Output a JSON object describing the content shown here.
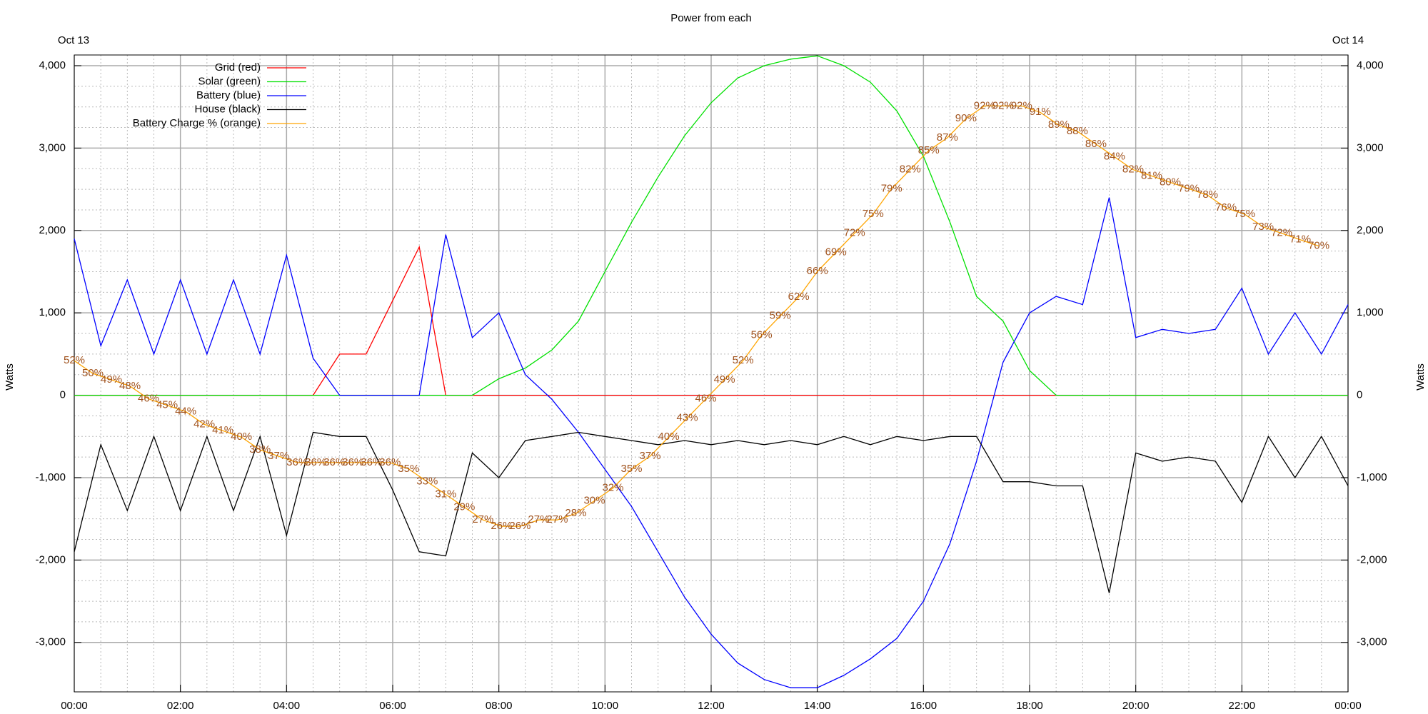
{
  "chart_data": {
    "type": "line",
    "title": "Power from each",
    "ylabel": "Watts",
    "annotations": [
      "Oct 13",
      "Oct 14"
    ],
    "grid": true,
    "legend": "top-left",
    "x": [
      0,
      0.5,
      1,
      1.5,
      2,
      2.5,
      3,
      3.5,
      4,
      4.5,
      5,
      5.5,
      6,
      6.5,
      7,
      7.5,
      8,
      8.5,
      9,
      9.5,
      10,
      10.5,
      11,
      11.5,
      12,
      12.5,
      13,
      13.5,
      14,
      14.5,
      15,
      15.5,
      16,
      16.5,
      17,
      17.5,
      18,
      18.5,
      19,
      19.5,
      20,
      20.5,
      21,
      21.5,
      22,
      22.5,
      23,
      23.5,
      24
    ],
    "xlim": [
      0,
      24
    ],
    "xticks": [
      {
        "value": 0,
        "label": "00:00"
      },
      {
        "value": 2,
        "label": "02:00"
      },
      {
        "value": 4,
        "label": "04:00"
      },
      {
        "value": 6,
        "label": "06:00"
      },
      {
        "value": 8,
        "label": "08:00"
      },
      {
        "value": 10,
        "label": "10:00"
      },
      {
        "value": 12,
        "label": "12:00"
      },
      {
        "value": 14,
        "label": "14:00"
      },
      {
        "value": 16,
        "label": "16:00"
      },
      {
        "value": 18,
        "label": "18:00"
      },
      {
        "value": 20,
        "label": "20:00"
      },
      {
        "value": 22,
        "label": "22:00"
      },
      {
        "value": 24,
        "label": "00:00"
      }
    ],
    "ylim": [
      -3600,
      4130
    ],
    "yticks": [
      {
        "value": -3000,
        "label": "-3,000"
      },
      {
        "value": -2000,
        "label": "-2,000"
      },
      {
        "value": -1000,
        "label": "-1,000"
      },
      0,
      {
        "value": 1000,
        "label": "1,000"
      },
      {
        "value": 2000,
        "label": "2,000"
      },
      {
        "value": 3000,
        "label": "3,000"
      },
      {
        "value": 4000,
        "label": "4,000"
      }
    ],
    "y2lim": [
      0,
      100
    ],
    "series": [
      {
        "name": "Grid (red)",
        "color": "#ff0000",
        "values": [
          0,
          0,
          0,
          0,
          0,
          0,
          0,
          0,
          0,
          0,
          500,
          500,
          1150,
          1800,
          0,
          0,
          0,
          0,
          0,
          0,
          0,
          0,
          0,
          0,
          0,
          0,
          0,
          0,
          0,
          0,
          0,
          0,
          0,
          0,
          0,
          0,
          0,
          0,
          0,
          0,
          0,
          0,
          0,
          0,
          0,
          0,
          0,
          0,
          0
        ]
      },
      {
        "name": "Solar (green)",
        "color": "#00e000",
        "values": [
          0,
          0,
          0,
          0,
          0,
          0,
          0,
          0,
          0,
          0,
          0,
          0,
          0,
          0,
          0,
          0,
          200,
          330,
          550,
          900,
          1500,
          2100,
          2650,
          3150,
          3550,
          3850,
          4000,
          4080,
          4120,
          4000,
          3800,
          3450,
          2900,
          2100,
          1200,
          900,
          300,
          0,
          0,
          0,
          0,
          0,
          0,
          0,
          0,
          0,
          0,
          0,
          0
        ]
      },
      {
        "name": "Battery (blue)",
        "color": "#0000ff",
        "values": [
          1900,
          600,
          1400,
          500,
          1400,
          500,
          1400,
          500,
          1700,
          450,
          0,
          0,
          0,
          0,
          1950,
          700,
          1000,
          250,
          -50,
          -450,
          -900,
          -1350,
          -1900,
          -2450,
          -2900,
          -3250,
          -3450,
          -3550,
          -3550,
          -3400,
          -3200,
          -2950,
          -2500,
          -1800,
          -800,
          400,
          1000,
          1200,
          1100,
          2400,
          700,
          800,
          750,
          800,
          1300,
          500,
          1000,
          500,
          1100
        ]
      },
      {
        "name": "House (black)",
        "color": "#000000",
        "values": [
          -1900,
          -600,
          -1400,
          -500,
          -1400,
          -500,
          -1400,
          -500,
          -1700,
          -450,
          -500,
          -500,
          -1150,
          -1900,
          -1950,
          -700,
          -1000,
          -550,
          -500,
          -450,
          -500,
          -550,
          -600,
          -550,
          -600,
          -550,
          -600,
          -550,
          -600,
          -500,
          -600,
          -500,
          -550,
          -500,
          -500,
          -1050,
          -1050,
          -1100,
          -1100,
          -2400,
          -700,
          -800,
          -750,
          -800,
          -1300,
          -500,
          -1000,
          -500,
          -1100
        ]
      },
      {
        "name": "Battery Charge % (orange)",
        "color": "#ffa500",
        "label_color": "#a0521d",
        "axis": "y2",
        "x": [
          0,
          0.35,
          0.7,
          1.05,
          1.4,
          1.75,
          2.1,
          2.45,
          2.8,
          3.15,
          3.5,
          3.85,
          4.2,
          4.55,
          4.9,
          5.25,
          5.6,
          5.95,
          6.3,
          6.65,
          7,
          7.35,
          7.7,
          8.05,
          8.4,
          8.75,
          9.1,
          9.45,
          9.8,
          10.15,
          10.5,
          10.85,
          11.2,
          11.55,
          11.9,
          12.25,
          12.6,
          12.95,
          13.3,
          13.65,
          14,
          14.35,
          14.7,
          15.05,
          15.4,
          15.75,
          16.1,
          16.45,
          16.8,
          17.15,
          17.5,
          17.85,
          18.2,
          18.55,
          18.9,
          19.25,
          19.6,
          19.95,
          20.3,
          20.65,
          21,
          21.35,
          21.7,
          22.05,
          22.4,
          22.75,
          23.1,
          23.45
        ],
        "values": [
          52,
          50,
          49,
          48,
          46,
          45,
          44,
          42,
          41,
          40,
          38,
          37,
          36,
          36,
          36,
          36,
          36,
          36,
          35,
          33,
          31,
          29,
          27,
          26,
          26,
          27,
          27,
          28,
          30,
          32,
          35,
          37,
          40,
          43,
          46,
          49,
          52,
          56,
          59,
          62,
          66,
          69,
          72,
          75,
          79,
          82,
          85,
          87,
          90,
          92,
          92,
          92,
          91,
          89,
          88,
          86,
          84,
          82,
          81,
          80,
          79,
          78,
          76,
          75,
          73,
          72,
          71,
          70
        ],
        "value_labels": [
          "52%",
          "50%",
          "49%",
          "48%",
          "46%",
          "45%",
          "44%",
          "42%",
          "41%",
          "40%",
          "38%",
          "37%",
          "36%",
          "36%",
          "36%",
          "36%",
          "36%",
          "36%",
          "35%",
          "33%",
          "31%",
          "29%",
          "27%",
          "26%",
          "26%",
          "27%",
          "27%",
          "28%",
          "30%",
          "32%",
          "35%",
          "37%",
          "40%",
          "43%",
          "46%",
          "49%",
          "52%",
          "56%",
          "59%",
          "62%",
          "66%",
          "69%",
          "72%",
          "75%",
          "79%",
          "82%",
          "85%",
          "87%",
          "90%",
          "92%",
          "92%",
          "92%",
          "91%",
          "89%",
          "88%",
          "86%",
          "84%",
          "82%",
          "81%",
          "80%",
          "79%",
          "78%",
          "76%",
          "75%",
          "73%",
          "72%",
          "71%",
          "70%"
        ]
      }
    ]
  }
}
